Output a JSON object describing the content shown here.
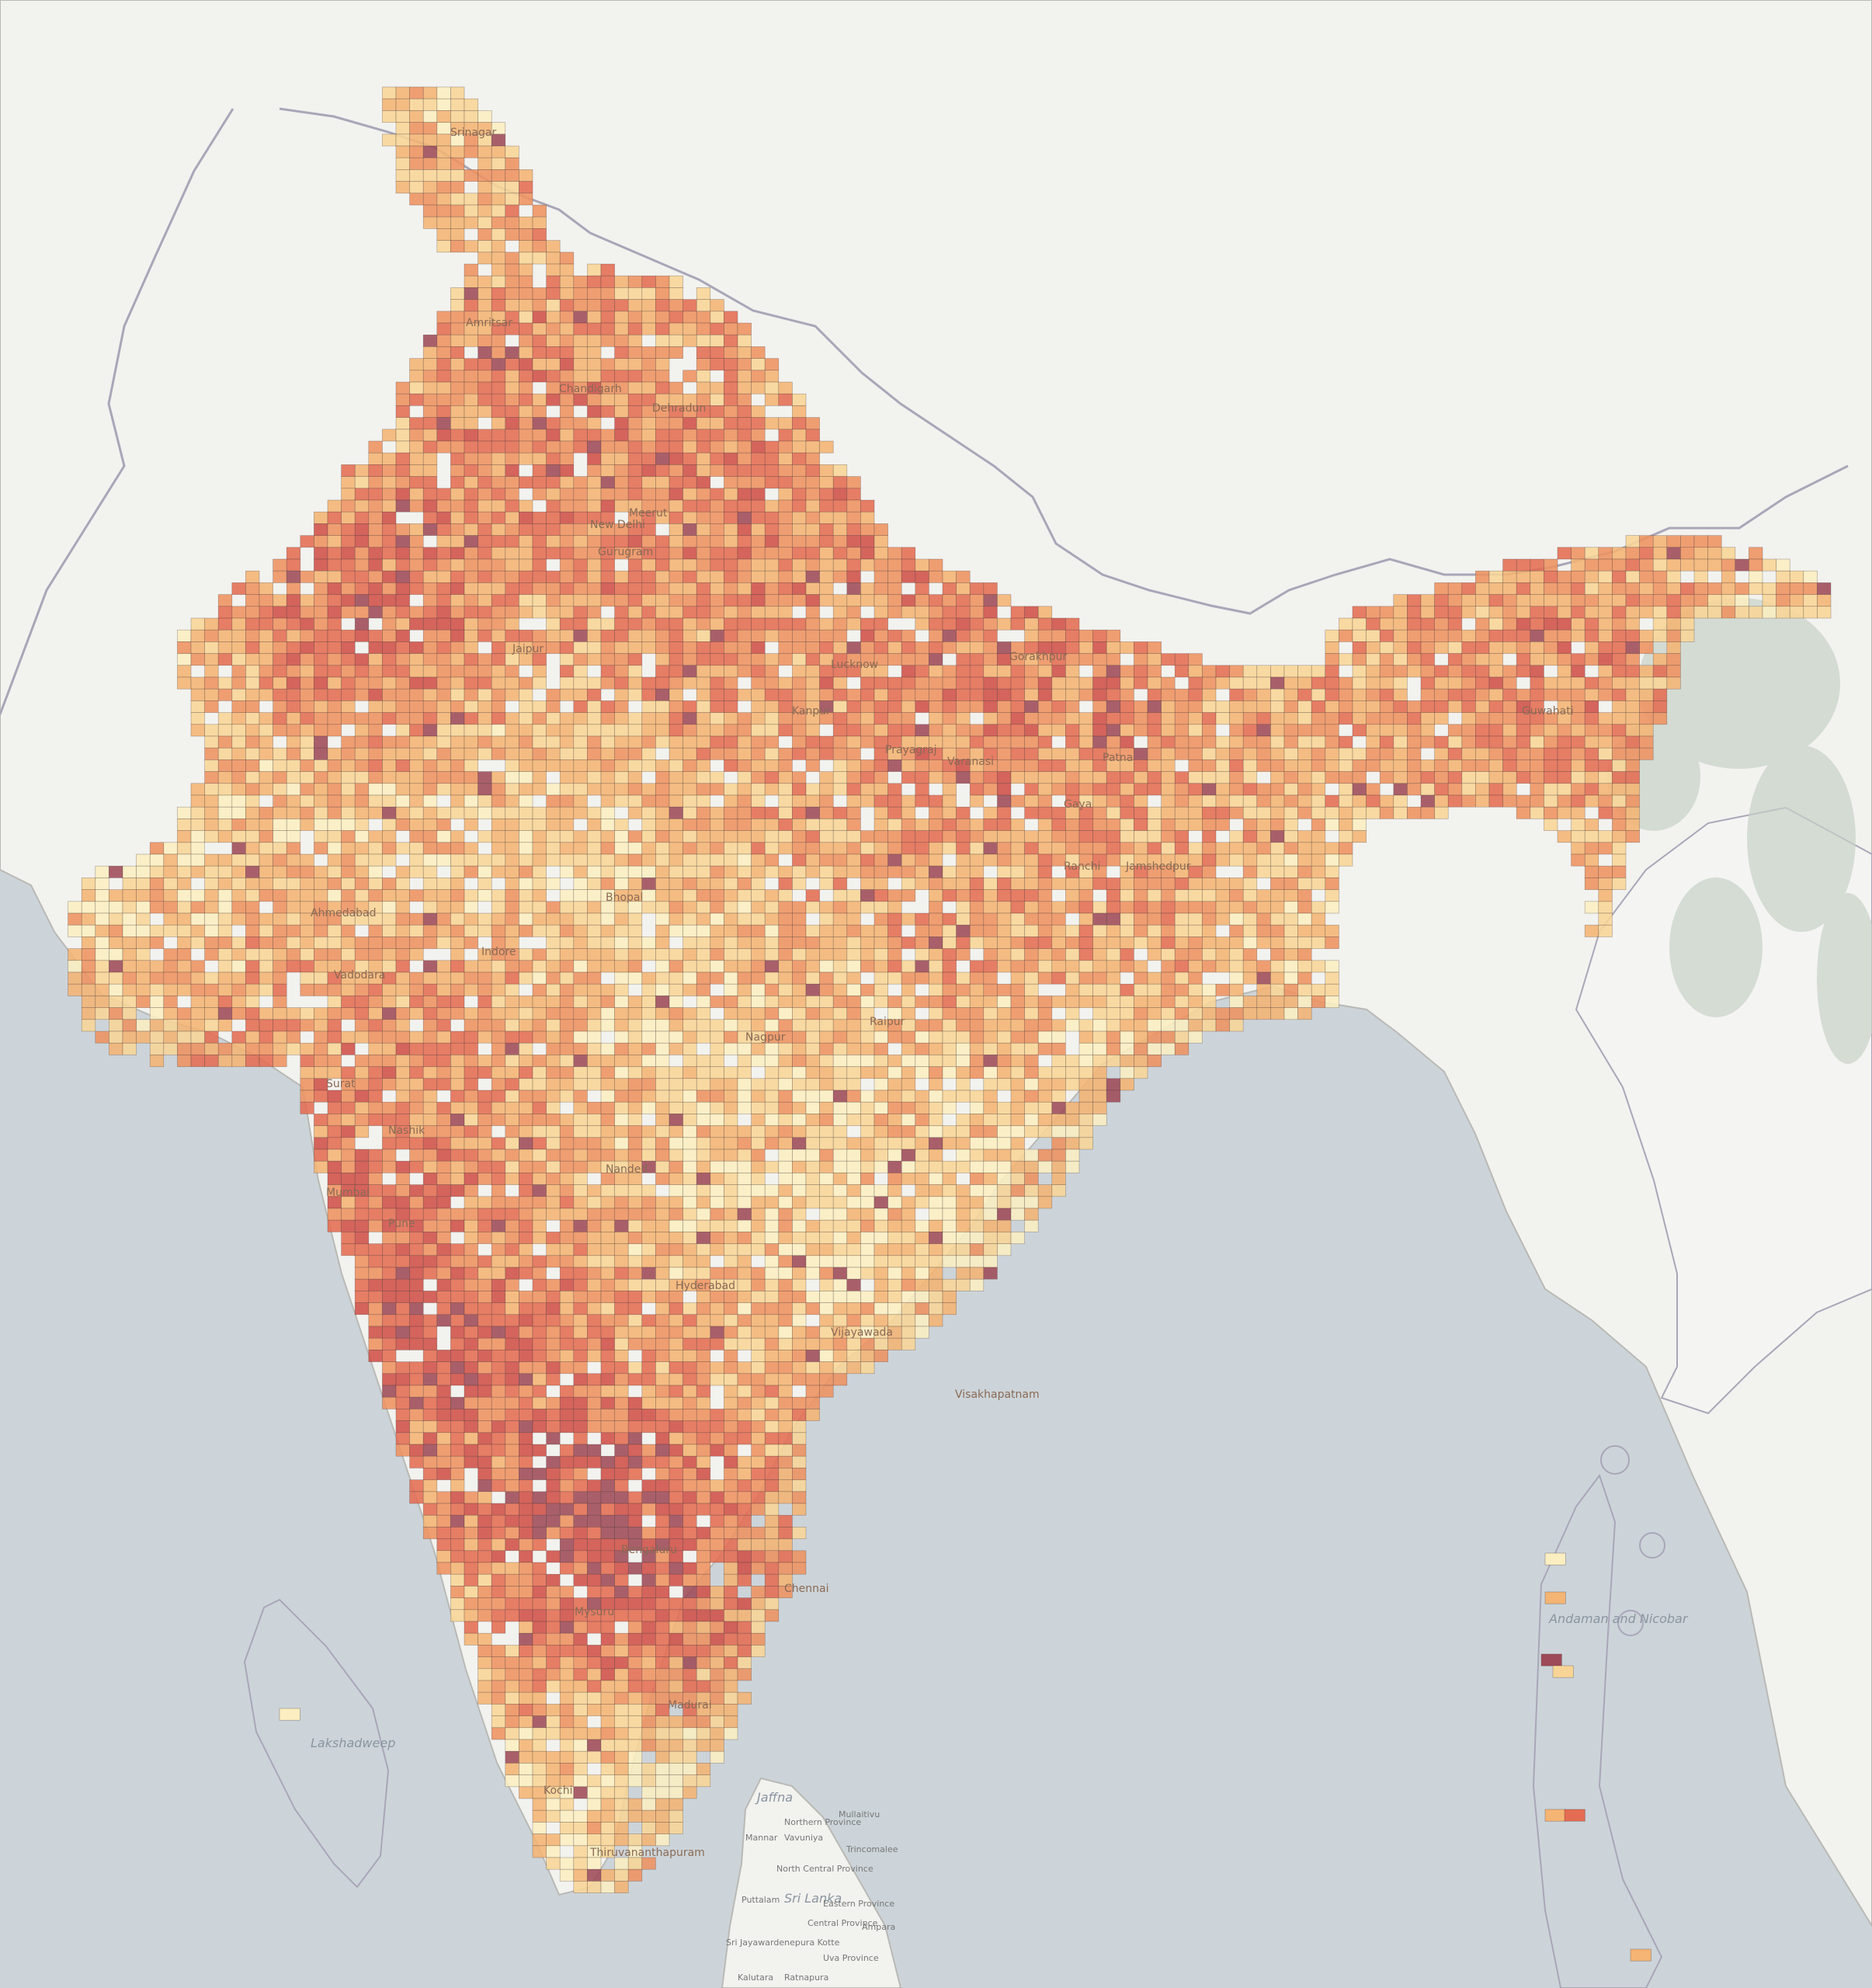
{
  "map": {
    "title": "",
    "cell_colors": [
      "#fbeec0",
      "#f8d596",
      "#f4b473",
      "#ee9260",
      "#e46c52",
      "#cf5048",
      "#9e4a58"
    ],
    "colors": {
      "land": "#f2f2ef",
      "land_foreign": "#f4f4f2",
      "water": "#ccd4d9",
      "forest": "#c7d2c8",
      "border": "#a9a6b8",
      "cell_stroke": "#4a3a3a"
    },
    "labels": {
      "india_cities": [
        "Srinagar",
        "Amritsar",
        "Chandigarh",
        "Dehradun",
        "New Delhi",
        "Gurugram",
        "Meerut",
        "Jaipur",
        "Lucknow",
        "Kanpur",
        "Prayagraj",
        "Varanasi",
        "Gorakhpur",
        "Patna",
        "Gaya",
        "Ranchi",
        "Jamshedpur",
        "Bhopal",
        "Indore",
        "Ahmedabad",
        "Vadodara",
        "Surat",
        "Nashik",
        "Mumbai",
        "Pune",
        "Nagpur",
        "Raipur",
        "Nanded",
        "Hyderabad",
        "Vijayawada",
        "Visakhapatnam",
        "Bengaluru",
        "Chennai",
        "Mysuru",
        "Kochi",
        "Madurai",
        "Thiruvananthapuram",
        "Guwahati"
      ],
      "sea_labels": [
        "Jaffna",
        "Sri Lanka",
        "Lakshadweep",
        "Andaman and Nicobar"
      ],
      "neighbor_labels": [
        "Northern Province",
        "Sri Jayawardenepura Kotte",
        "Kalutara",
        "Ratnapura",
        "Puttalam",
        "Mannar",
        "Trincomalee",
        "North Central Province",
        "Eastern Province",
        "Ampara",
        "Central Province",
        "Mullaitivu",
        "Vavuniya",
        "Uva Province"
      ]
    }
  }
}
